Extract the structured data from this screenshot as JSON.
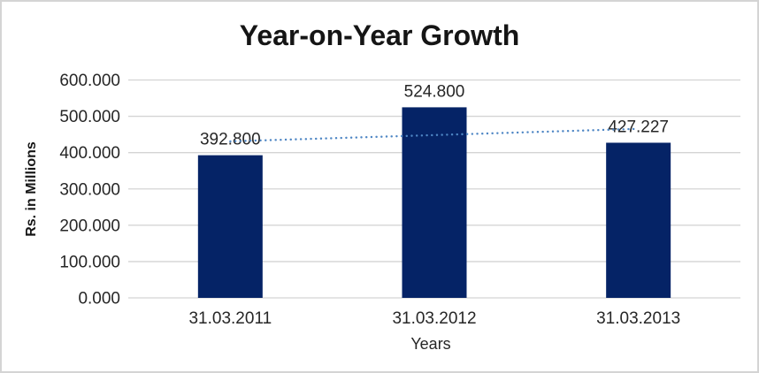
{
  "chart_data": {
    "type": "bar",
    "title": "Year-on-Year Growth",
    "xlabel": "Years",
    "ylabel": "Rs. in Millions",
    "categories": [
      "31.03.2011",
      "31.03.2012",
      "31.03.2013"
    ],
    "values": [
      392.8,
      524.8,
      427.227
    ],
    "bar_labels": [
      "392.800",
      "524.800",
      "427.227"
    ],
    "ylim": [
      0,
      600
    ],
    "yticks": [
      {
        "value": 0,
        "label": "0.000"
      },
      {
        "value": 100,
        "label": "100.000"
      },
      {
        "value": 200,
        "label": "200.000"
      },
      {
        "value": 300,
        "label": "300.000"
      },
      {
        "value": 400,
        "label": "400.000"
      },
      {
        "value": 500,
        "label": "500.000"
      },
      {
        "value": 600,
        "label": "600.000"
      }
    ],
    "grid": true,
    "legend_position": "none",
    "trendline": {
      "type": "linear",
      "style": "dotted",
      "color": "#4e86c4"
    },
    "colors": {
      "bar": "#052366",
      "gridline": "#d4d4d4",
      "text": "#262626",
      "title": "#151515",
      "frame_border": "#d4d4d4"
    }
  }
}
